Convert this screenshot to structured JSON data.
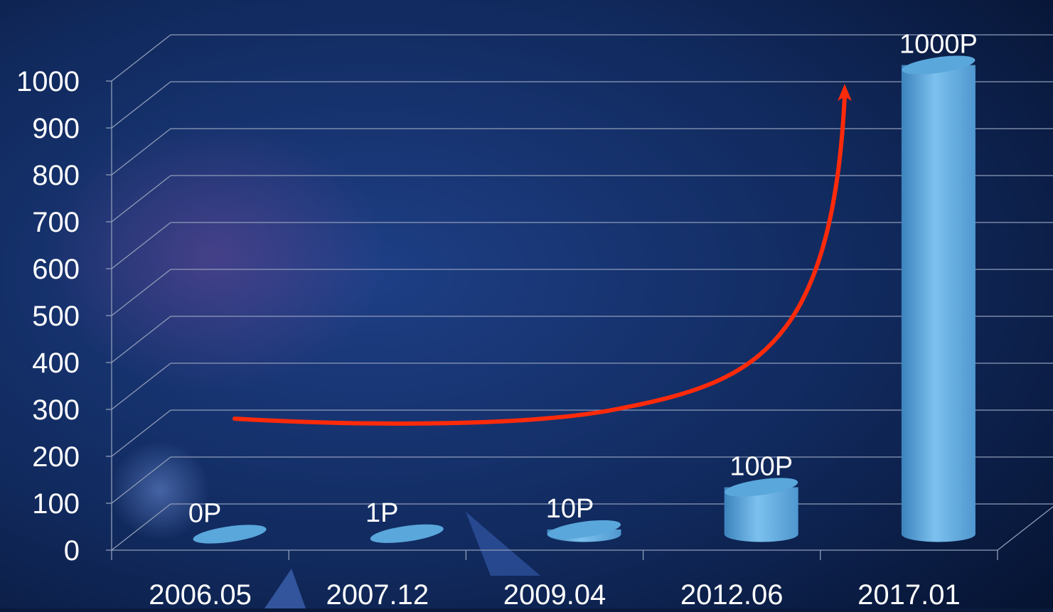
{
  "chart_data": {
    "type": "bar",
    "categories": [
      "2006.05",
      "2007.12",
      "2009.04",
      "2012.06",
      "2017.01"
    ],
    "values": [
      0,
      1,
      10,
      100,
      1000
    ],
    "data_labels": [
      "0P",
      "1P",
      "10P",
      "100P",
      "1000P"
    ],
    "y_ticks": [
      "0",
      "100",
      "200",
      "300",
      "400",
      "500",
      "600",
      "700",
      "800",
      "900",
      "1000"
    ],
    "ylim": [
      0,
      1000
    ],
    "grid": true,
    "style": "3d-cylinder",
    "annotation": "trend-arrow"
  },
  "colors": {
    "bar": "#5aa7dc",
    "bar_light": "#7cc1ee",
    "bar_dark": "#3c83bd",
    "grid": "#8f9cb8",
    "text": "#ffffff",
    "arrow": "#ff2a0a"
  }
}
